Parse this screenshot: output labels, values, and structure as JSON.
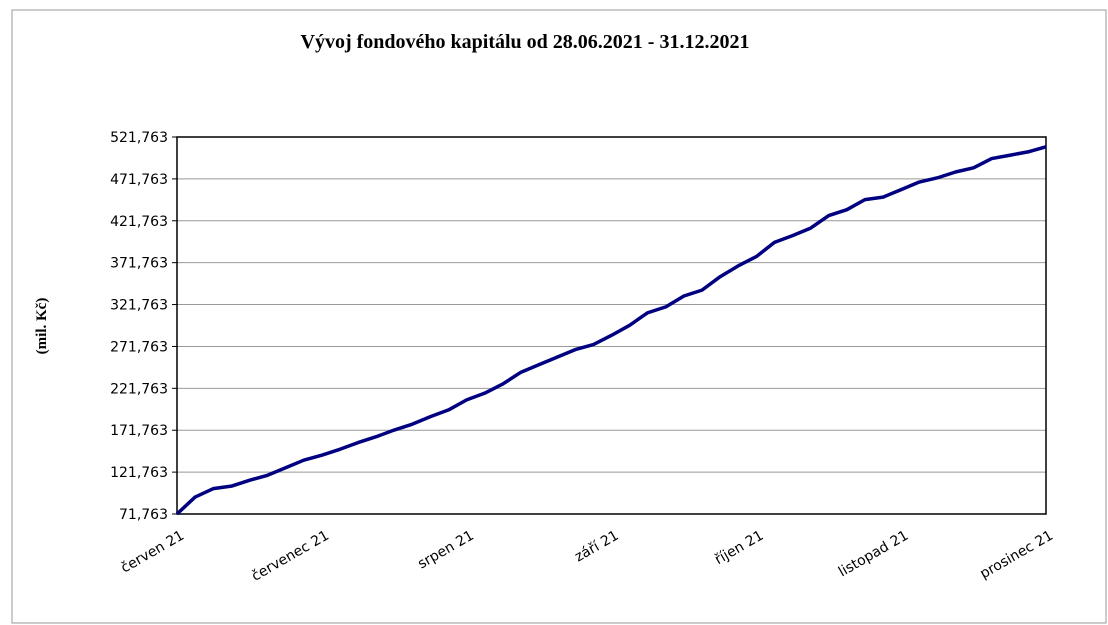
{
  "chart_data": {
    "type": "line",
    "title": "Vývoj fondového kapitálu od 28.06.2021 - 31.12.2021",
    "y_label": "(mil. Kč)",
    "categories": [
      "červen 21",
      null,
      null,
      null,
      null,
      null,
      null,
      null,
      "červenec 21",
      null,
      null,
      null,
      null,
      null,
      null,
      null,
      "srpen 21",
      null,
      null,
      null,
      null,
      null,
      null,
      null,
      "září 21",
      null,
      null,
      null,
      null,
      null,
      null,
      null,
      "říjen 21",
      null,
      null,
      null,
      null,
      null,
      null,
      null,
      "listopad 21",
      null,
      null,
      null,
      null,
      null,
      null,
      null,
      "prosinec 21"
    ],
    "series": [
      {
        "color": "#000080",
        "values": [
          71763,
          92000,
          102000,
          105000,
          112000,
          118000,
          127000,
          136000,
          142000,
          149000,
          157000,
          164000,
          172000,
          179000,
          188000,
          196000,
          208000,
          216000,
          227000,
          241000,
          250000,
          259000,
          268000,
          274000,
          285000,
          297000,
          312000,
          319000,
          332000,
          339000,
          355000,
          368000,
          379000,
          396000,
          404000,
          413000,
          428000,
          435000,
          447000,
          450000,
          459000,
          468000,
          473000,
          480000,
          485000,
          496000,
          500000,
          504000,
          510000
        ]
      }
    ],
    "ylim": [
      71763,
      521763
    ],
    "yticks": [
      {
        "value": 71763,
        "label": "71,763"
      },
      {
        "value": 121763,
        "label": "121,763"
      },
      {
        "value": 171763,
        "label": "171,763"
      },
      {
        "value": 221763,
        "label": "221,763"
      },
      {
        "value": 271763,
        "label": "271,763"
      },
      {
        "value": 321763,
        "label": "321,763"
      },
      {
        "value": 371763,
        "label": "371,763"
      },
      {
        "value": 421763,
        "label": "421,763"
      },
      {
        "value": 471763,
        "label": "471,763"
      },
      {
        "value": 521763,
        "label": "521,763"
      }
    ],
    "grid": true
  }
}
